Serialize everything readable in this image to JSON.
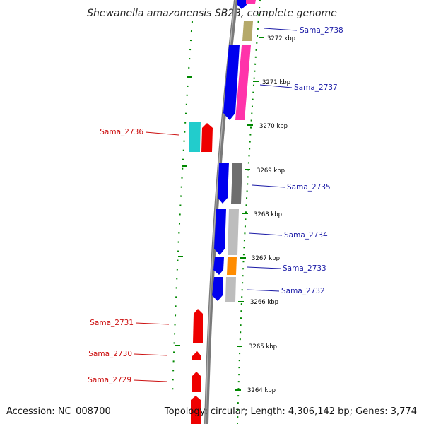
{
  "title": "Shewanella amazonensis SB2B, complete genome",
  "accession": "Accession: NC_008700",
  "topology": "Topology: circular; Length: 4,306,142 bp; Genes: 3,774",
  "colors": {
    "forward_gene": "#0000ee",
    "reverse_gene": "#ee0000",
    "backbone": "#888888",
    "tick": "#008800",
    "label_blue": "#1a1aa6",
    "label_red": "#cc1111"
  },
  "scale_labels": [
    "3272 kbp",
    "3271 kbp",
    "3270 kbp",
    "3269 kbp",
    "3268 kbp",
    "3267 kbp",
    "3266 kbp",
    "3265 kbp",
    "3264 kbp"
  ],
  "genes_forward": [
    {
      "label": "Sama_2738",
      "strand": "forward",
      "cog_color": "#b5a96a"
    },
    {
      "label": "Sama_2737",
      "strand": "forward",
      "cog_color": "#ff33aa"
    },
    {
      "label": "Sama_2735",
      "strand": "forward",
      "cog_color": "#6e6e6e"
    },
    {
      "label": "Sama_2734",
      "strand": "forward",
      "cog_color": "#bdbdbd"
    },
    {
      "label": "Sama_2733",
      "strand": "forward",
      "cog_color": "#ff8c00"
    },
    {
      "label": "Sama_2732",
      "strand": "forward",
      "cog_color": "#bdbdbd"
    }
  ],
  "genes_reverse": [
    {
      "label": "Sama_2736",
      "strand": "reverse",
      "cog_color": "#22cccc"
    },
    {
      "label": "Sama_2731",
      "strand": "reverse"
    },
    {
      "label": "Sama_2730",
      "strand": "reverse"
    },
    {
      "label": "Sama_2729",
      "strand": "reverse"
    }
  ]
}
